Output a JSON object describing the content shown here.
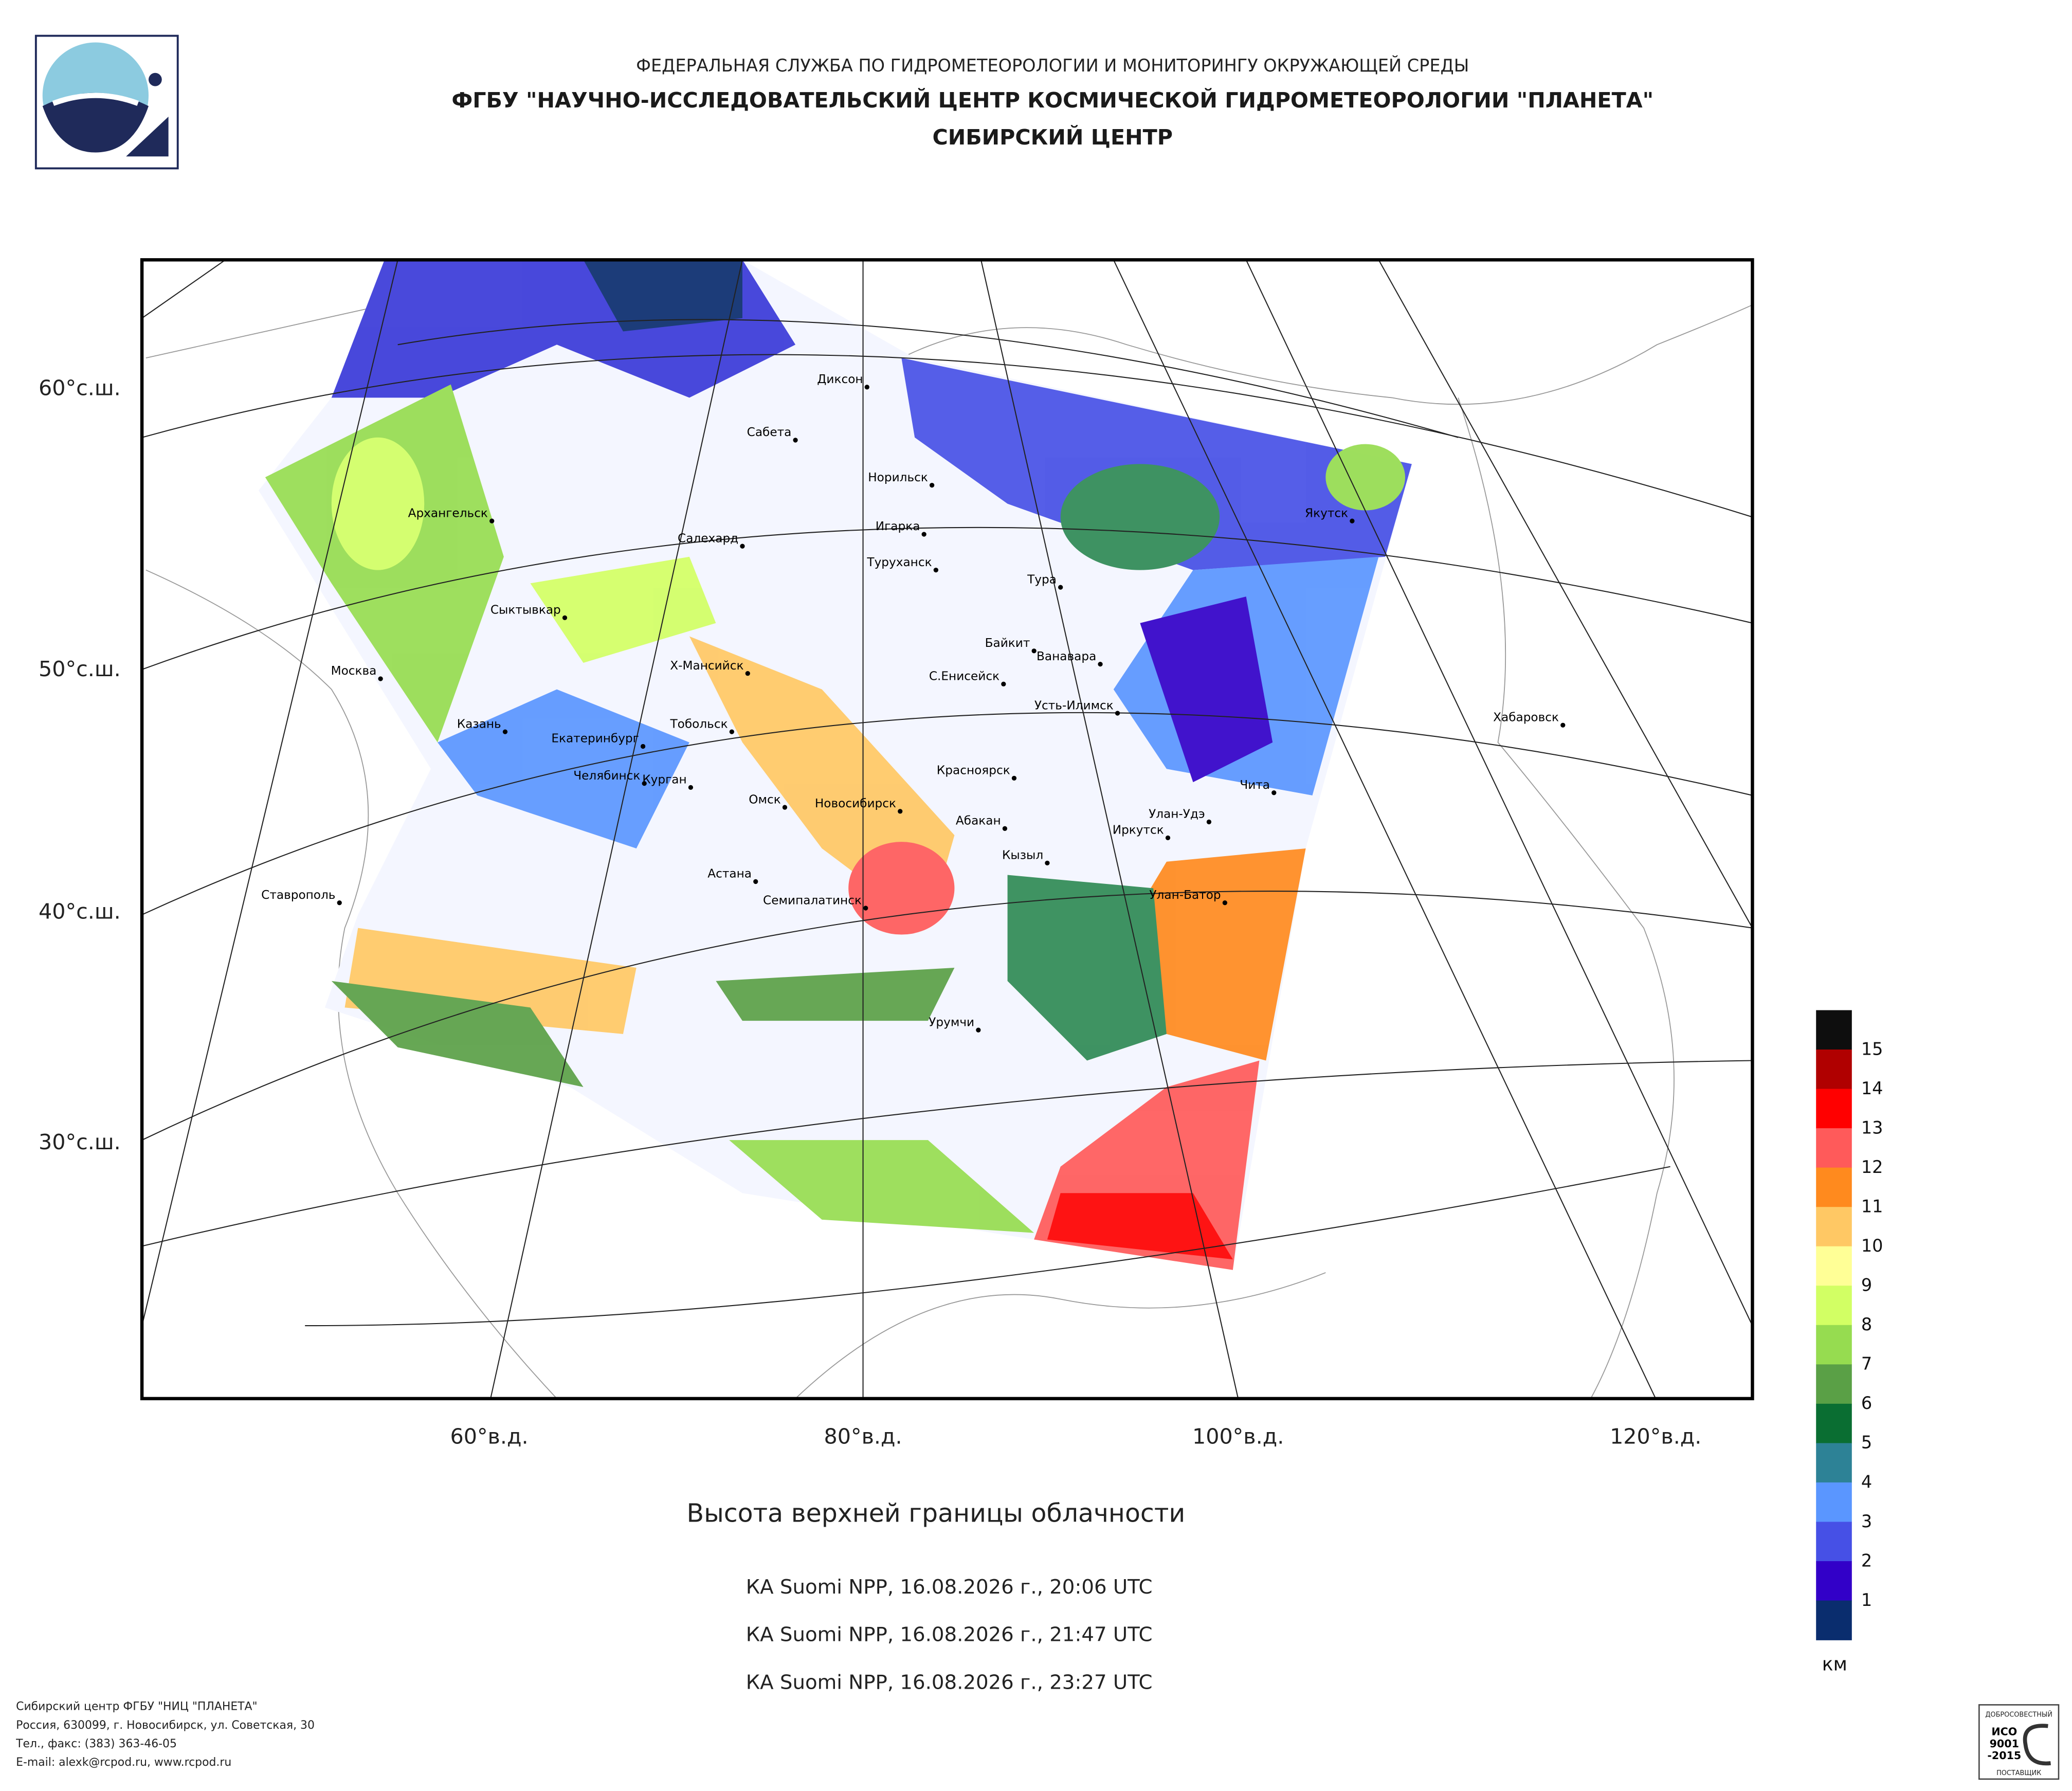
{
  "header": {
    "line1": "ФЕДЕРАЛЬНАЯ СЛУЖБА ПО ГИДРОМЕТЕОРОЛОГИИ И МОНИТОРИНГУ ОКРУЖАЮЩЕЙ СРЕДЫ",
    "line2": "ФГБУ \"НАУЧНО-ИССЛЕДОВАТЕЛЬСКИЙ ЦЕНТР КОСМИЧЕСКОЙ ГИДРОМЕТЕОРОЛОГИИ \"ПЛАНЕТА\"",
    "line3": "СИБИРСКИЙ ЦЕНТР"
  },
  "map": {
    "lat_labels": [
      "60°с.ш.",
      "50°с.ш.",
      "40°с.ш.",
      "30°с.ш."
    ],
    "lon_labels": [
      "60°в.д.",
      "80°в.д.",
      "100°в.д.",
      "120°в.д."
    ],
    "cities": [
      "Диксон",
      "Сабета",
      "Норильск",
      "Игарка",
      "Архангельск",
      "Салехард",
      "Туруханск",
      "Тура",
      "Якутск",
      "Сыктывкар",
      "Байкит",
      "Ванавара",
      "Х-Мансийск",
      "С.Енисейск",
      "Москва",
      "Усть-Илимск",
      "Хабаровск",
      "Казань",
      "Тобольск",
      "Екатеринбург",
      "Красноярск",
      "Челябинск",
      "Курган",
      "Омск",
      "Чита",
      "Новосибирск",
      "Абакан",
      "Улан-Удэ",
      "Иркутск",
      "Кызыл",
      "Астана",
      "Улан-Батор",
      "Ставрополь",
      "Семипалатинск",
      "Урумчи"
    ]
  },
  "legend": {
    "colors": [
      "#0e0e0e",
      "#b00000",
      "#ff0000",
      "#ff5a5a",
      "#ff8a1e",
      "#ffc864",
      "#ffff96",
      "#d2ff64",
      "#96dc50",
      "#5aa046",
      "#0a6e32",
      "#2d8296",
      "#5a96ff",
      "#4650e6",
      "#3200c8",
      "#0a2d6e"
    ],
    "labels": [
      15,
      14,
      13,
      12,
      11,
      10,
      9,
      8,
      7,
      6,
      5,
      4,
      3,
      2,
      1
    ],
    "unit": "км"
  },
  "caption": {
    "title": "Высота верхней границы облачности",
    "passes": [
      "КА Suomi NPP, 16.08.2026 г., 20:06 UTC",
      "КА Suomi NPP, 16.08.2026 г., 21:47 UTC",
      "КА Suomi NPP, 16.08.2026 г., 23:27 UTC"
    ]
  },
  "footer": {
    "lines": [
      "Сибирский центр ФГБУ \"НИЦ \"ПЛАНЕТА\"",
      "Россия, 630099, г. Новосибирск, ул. Советская, 30",
      "Тел., факс: (383) 363-46-05",
      "E-mail: alexk@rcpod.ru, www.rcpod.ru"
    ]
  },
  "badge": {
    "top": "ДОБРОСОВЕСТНЫЙ",
    "iso": "ИСО",
    "num": "9001",
    "year": "-2015",
    "bottom": "ПОСТАВЩИК"
  }
}
